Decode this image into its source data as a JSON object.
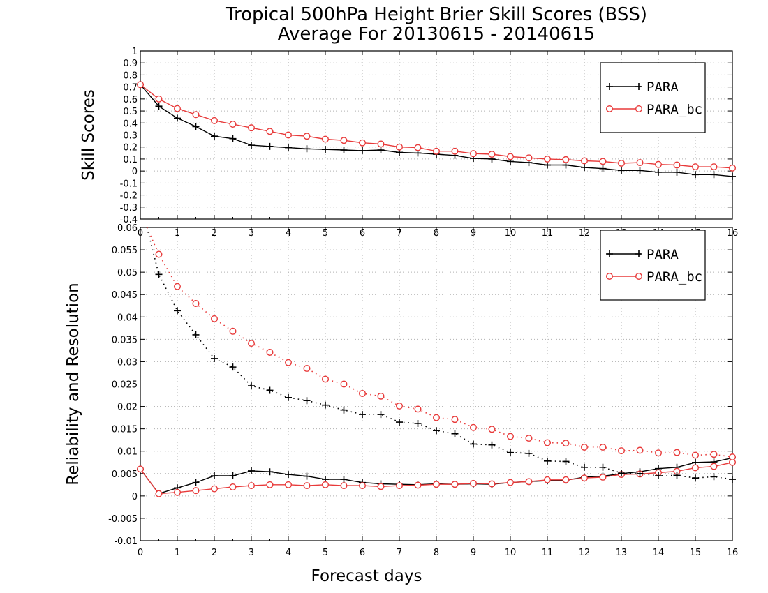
{
  "title_line1": "Tropical 500hPa Height Brier Skill Scores (BSS)",
  "title_line2": "Average For 20130615 - 20140615",
  "colors": {
    "para": "#000000",
    "para_bc": "#e83a3a"
  },
  "chart_data": [
    {
      "type": "line",
      "ylabel": "Skill Scores",
      "xlim": [
        0,
        16
      ],
      "ylim": [
        -0.4,
        1
      ],
      "grid": true,
      "legend_position": "top-right",
      "x_ticks": [
        0,
        1,
        2,
        3,
        4,
        5,
        6,
        7,
        8,
        9,
        10,
        11,
        12,
        13,
        14,
        15,
        16
      ],
      "x_tick_labels": [
        "0",
        "1",
        "2",
        "3",
        "4",
        "5",
        "6",
        "7",
        "8",
        "9",
        "10",
        "11",
        "12",
        "13",
        "14",
        "15",
        "16"
      ],
      "y_ticks": [
        -0.4,
        -0.3,
        -0.2,
        -0.1,
        0,
        0.1,
        0.2,
        0.3,
        0.4,
        0.5,
        0.6,
        0.7,
        0.8,
        0.9,
        1
      ],
      "y_tick_labels": [
        "-0.4",
        "-0.3",
        "-0.2",
        "-0.1",
        "0",
        "0.1",
        "0.2",
        "0.3",
        "0.4",
        "0.5",
        "0.6",
        "0.7",
        "0.8",
        "0.9",
        "1"
      ],
      "x": [
        0,
        0.5,
        1,
        1.5,
        2,
        2.5,
        3,
        3.5,
        4,
        4.5,
        5,
        5.5,
        6,
        6.5,
        7,
        7.5,
        8,
        8.5,
        9,
        9.5,
        10,
        10.5,
        11,
        11.5,
        12,
        12.5,
        13,
        13.5,
        14,
        14.5,
        15,
        15.5,
        16
      ],
      "series": [
        {
          "name": "PARA",
          "color": "#000000",
          "marker": "plus",
          "style": "solid",
          "values": [
            0.72,
            0.54,
            0.44,
            0.37,
            0.29,
            0.27,
            0.215,
            0.205,
            0.195,
            0.185,
            0.18,
            0.175,
            0.17,
            0.175,
            0.155,
            0.15,
            0.14,
            0.13,
            0.105,
            0.1,
            0.08,
            0.07,
            0.05,
            0.05,
            0.03,
            0.02,
            0.005,
            0.005,
            -0.01,
            -0.01,
            -0.03,
            -0.03,
            -0.045
          ]
        },
        {
          "name": "PARA_bc",
          "color": "#e83a3a",
          "marker": "circle",
          "style": "solid",
          "values": [
            0.72,
            0.6,
            0.52,
            0.47,
            0.42,
            0.39,
            0.36,
            0.33,
            0.3,
            0.29,
            0.265,
            0.255,
            0.235,
            0.225,
            0.2,
            0.195,
            0.165,
            0.165,
            0.145,
            0.14,
            0.12,
            0.11,
            0.1,
            0.095,
            0.085,
            0.08,
            0.065,
            0.07,
            0.055,
            0.05,
            0.035,
            0.035,
            0.025
          ]
        }
      ]
    },
    {
      "type": "line",
      "xlabel": "Forecast days",
      "ylabel": "Reliability and Resolution",
      "xlim": [
        0,
        16
      ],
      "ylim": [
        -0.01,
        0.06
      ],
      "grid": true,
      "legend_position": "top-right",
      "x_ticks": [
        0,
        1,
        2,
        3,
        4,
        5,
        6,
        7,
        8,
        9,
        10,
        11,
        12,
        13,
        14,
        15,
        16
      ],
      "x_tick_labels": [
        "0",
        "1",
        "2",
        "3",
        "4",
        "5",
        "6",
        "7",
        "8",
        "9",
        "10",
        "11",
        "12",
        "13",
        "14",
        "15",
        "16"
      ],
      "y_ticks": [
        -0.01,
        -0.005,
        0,
        0.005,
        0.01,
        0.015,
        0.02,
        0.025,
        0.03,
        0.035,
        0.04,
        0.045,
        0.05,
        0.055,
        0.06
      ],
      "y_tick_labels": [
        "-0.01",
        "-0.005",
        "0",
        "0.005",
        "0.01",
        "0.015",
        "0.02",
        "0.025",
        "0.03",
        "0.035",
        "0.04",
        "0.045",
        "0.05",
        "0.055",
        "0.06"
      ],
      "x": [
        0,
        0.5,
        1,
        1.5,
        2,
        2.5,
        3,
        3.5,
        4,
        4.5,
        5,
        5.5,
        6,
        6.5,
        7,
        7.5,
        8,
        8.5,
        9,
        9.5,
        10,
        10.5,
        11,
        11.5,
        12,
        12.5,
        13,
        13.5,
        14,
        14.5,
        15,
        15.5,
        16
      ],
      "series": [
        {
          "name": "PARA",
          "role": "reliability",
          "color": "#000000",
          "marker": "plus",
          "style": "solid",
          "values": [
            0.006,
            0.0005,
            0.0018,
            0.003,
            0.0045,
            0.0045,
            0.0056,
            0.0054,
            0.0048,
            0.0044,
            0.0037,
            0.0037,
            0.003,
            0.0027,
            0.0026,
            0.0025,
            0.0027,
            0.0026,
            0.0027,
            0.0026,
            0.003,
            0.0032,
            0.0034,
            0.0035,
            0.0042,
            0.0044,
            0.005,
            0.0054,
            0.0061,
            0.0064,
            0.0075,
            0.0076,
            0.0085
          ]
        },
        {
          "name": "PARA_bc",
          "role": "reliability",
          "color": "#e83a3a",
          "marker": "circle",
          "style": "solid",
          "values": [
            0.006,
            0.0005,
            0.0008,
            0.0012,
            0.0016,
            0.002,
            0.0023,
            0.0025,
            0.0025,
            0.0023,
            0.0025,
            0.0023,
            0.0023,
            0.0021,
            0.0023,
            0.0024,
            0.0026,
            0.0026,
            0.0028,
            0.0027,
            0.003,
            0.0032,
            0.0036,
            0.0036,
            0.004,
            0.0042,
            0.0048,
            0.0049,
            0.0052,
            0.0055,
            0.0063,
            0.0066,
            0.0075
          ]
        },
        {
          "name": "PARA",
          "role": "resolution",
          "color": "#000000",
          "marker": "plus",
          "style": "dotted",
          "values": [
            null,
            0.0495,
            0.0414,
            0.036,
            0.0307,
            0.0288,
            0.0246,
            0.0236,
            0.022,
            0.0213,
            0.0203,
            0.0192,
            0.0182,
            0.0182,
            0.0165,
            0.0162,
            0.0146,
            0.0139,
            0.0116,
            0.0114,
            0.0097,
            0.0095,
            0.0078,
            0.0077,
            0.0064,
            0.0064,
            0.0051,
            0.005,
            0.0045,
            0.0046,
            0.004,
            0.0043,
            0.0037
          ]
        },
        {
          "name": "PARA_bc",
          "role": "resolution",
          "color": "#e83a3a",
          "marker": "circle",
          "style": "dotted",
          "values": [
            null,
            0.054,
            0.0468,
            0.043,
            0.0396,
            0.0368,
            0.0341,
            0.0321,
            0.0298,
            0.0285,
            0.0261,
            0.025,
            0.0229,
            0.0223,
            0.0201,
            0.0194,
            0.0175,
            0.0171,
            0.0153,
            0.0149,
            0.0133,
            0.0129,
            0.0119,
            0.0118,
            0.0109,
            0.0109,
            0.0101,
            0.0102,
            0.0096,
            0.0097,
            0.0091,
            0.0093,
            0.0087
          ]
        }
      ]
    }
  ]
}
